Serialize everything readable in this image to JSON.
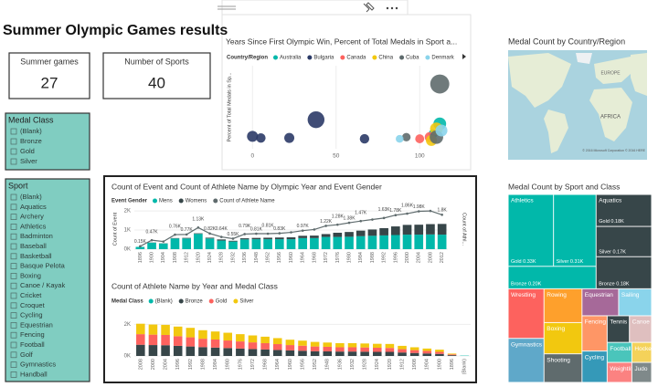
{
  "header": {
    "title": "Summer Olympic Games results"
  },
  "cards": [
    {
      "label": "Summer games",
      "value": 27
    },
    {
      "label": "Number of Sports",
      "value": 40
    }
  ],
  "slicers": [
    {
      "title": "Medal Class",
      "items": [
        "(Blank)",
        "Bronze",
        "Gold",
        "Silver"
      ]
    },
    {
      "title": "Sport",
      "items": [
        "(Blank)",
        "Aquatics",
        "Archery",
        "Athletics",
        "Badminton",
        "Baseball",
        "Basketball",
        "Basque Pelota",
        "Boxing",
        "Canoe / Kayak",
        "Cricket",
        "Croquet",
        "Cycling",
        "Equestrian",
        "Fencing",
        "Football",
        "Golf",
        "Gymnastics",
        "Handball"
      ]
    }
  ],
  "map": {
    "title": "Medal Count by Country/Region",
    "labels": [
      "EUROPE",
      "AFRICA"
    ],
    "credit": "© 2016 Microsoft Corporation © 2016 HERE"
  },
  "chart_data": [
    {
      "type": "scatter",
      "title": "Years Since First Olympic Win, Percent of Total Medals in Sport a...",
      "legend_title": "Country/Region",
      "y_label": "Percent of Total Medals in Sp...",
      "xlim": [
        -10,
        125
      ],
      "xticks": [
        0,
        50,
        100
      ],
      "ylim": [
        0,
        100
      ],
      "series": [
        {
          "name": "Australia",
          "color": "#01b8aa",
          "x": [
            112,
            108
          ],
          "values": [
            30,
            18
          ],
          "sizes": [
            40,
            20
          ]
        },
        {
          "name": "Bulgaria",
          "color": "#2b3a67",
          "x": [
            38,
            0,
            5,
            22,
            67
          ],
          "values": [
            35,
            15,
            13,
            13,
            12
          ],
          "sizes": [
            70,
            30,
            22,
            25,
            22
          ]
        },
        {
          "name": "Canada",
          "color": "#fd625e",
          "x": [
            100,
            106
          ],
          "values": [
            12,
            14
          ],
          "sizes": [
            20,
            25
          ]
        },
        {
          "name": "China",
          "color": "#f2c80f",
          "x": [
            110,
            107
          ],
          "values": [
            24,
            10
          ],
          "sizes": [
            40,
            30
          ]
        },
        {
          "name": "Cuba",
          "color": "#5f6b6d",
          "x": [
            112,
            92,
            110
          ],
          "values": [
            78,
            14,
            14
          ],
          "sizes": [
            90,
            18,
            45
          ]
        },
        {
          "name": "Denmark",
          "color": "#8ad4eb",
          "x": [
            113,
            88
          ],
          "values": [
            22,
            12
          ],
          "sizes": [
            35,
            15
          ]
        }
      ]
    },
    {
      "type": "combo",
      "title": "Count of Event and Count of Athlete Name by Olympic Year and Event Gender",
      "legend_title": "Event Gender",
      "y_label": "Count of Event",
      "y2_label": "Count of Athl...",
      "ylim": [
        0,
        2100
      ],
      "yticks": [
        {
          "value": 0,
          "label": "0K"
        },
        {
          "value": 1000,
          "label": "1K"
        },
        {
          "value": 2000,
          "label": "2K"
        }
      ],
      "categories": [
        "1896",
        "1900",
        "1904",
        "1908",
        "1912",
        "1920",
        "1924",
        "1928",
        "1932",
        "1936",
        "1948",
        "1952",
        "1956",
        "1960",
        "1964",
        "1968",
        "1972",
        "1976",
        "1980",
        "1984",
        "1988",
        "1992",
        "1996",
        "2000",
        "2004",
        "2008",
        "2012"
      ],
      "series": [
        {
          "name": "Mens",
          "color": "#01b8aa",
          "kind": "bar",
          "values": [
            120,
            340,
            300,
            560,
            560,
            800,
            560,
            450,
            400,
            510,
            520,
            520,
            520,
            520,
            580,
            580,
            640,
            640,
            650,
            680,
            700,
            720,
            740,
            760,
            760,
            770,
            760
          ]
        },
        {
          "name": "Womens",
          "color": "#374649",
          "kind": "bar",
          "values": [
            0,
            10,
            10,
            20,
            30,
            30,
            40,
            60,
            40,
            60,
            70,
            80,
            90,
            100,
            120,
            130,
            150,
            220,
            250,
            290,
            330,
            380,
            450,
            510,
            520,
            540,
            560
          ]
        },
        {
          "name": "Count of Athlete Name",
          "color": "#5f6b6d",
          "kind": "line",
          "values": [
            150,
            470,
            400,
            760,
            770,
            1130,
            820,
            640,
            550,
            790,
            810,
            810,
            830,
            880,
            970,
            1030,
            1220,
            1280,
            1380,
            1470,
            1550,
            1630,
            1780,
            1860,
            1980,
            2000,
            1800
          ],
          "value_labels": [
            "0.15K",
            "0.47K",
            null,
            "0.76K",
            "0.77K",
            "1.13K",
            "0.82K",
            "0.64K",
            "0.55K",
            "0.79K",
            "0.81K",
            "0.81K",
            "0.83K",
            null,
            "0.97K",
            null,
            "1.22K",
            "1.28K",
            "1.38K",
            "1.47K",
            null,
            "1.63K",
            "1.78K",
            "1.86K",
            "1.98K",
            null,
            "1.8K"
          ]
        }
      ]
    },
    {
      "type": "stacked_bar",
      "title": "Count of Athlete Name by Year and Medal Class",
      "legend_title": "Medal Class",
      "ylim": [
        0,
        2600
      ],
      "yticks": [
        {
          "value": 0,
          "label": "0K"
        },
        {
          "value": 2000,
          "label": "2K"
        }
      ],
      "categories": [
        "2008",
        "2000",
        "2004",
        "1996",
        "1992",
        "1988",
        "1984",
        "1980",
        "1976",
        "1972",
        "1968",
        "1964",
        "1960",
        "1956",
        "1952",
        "1948",
        "1936",
        "1932",
        "1928",
        "1924",
        "1920",
        "1912",
        "1908",
        "1904",
        "1900",
        "1896",
        "(Blank)"
      ],
      "series": [
        {
          "name": "(Blank)",
          "color": "#01b8aa",
          "values": [
            0,
            0,
            0,
            0,
            0,
            0,
            0,
            0,
            0,
            0,
            0,
            0,
            0,
            0,
            0,
            0,
            0,
            0,
            0,
            0,
            0,
            0,
            0,
            0,
            0,
            0,
            20
          ]
        },
        {
          "name": "Bronze",
          "color": "#374649",
          "values": [
            710,
            690,
            680,
            640,
            600,
            560,
            530,
            500,
            470,
            440,
            410,
            380,
            350,
            330,
            300,
            290,
            280,
            280,
            270,
            260,
            260,
            220,
            190,
            160,
            130,
            50,
            0
          ]
        },
        {
          "name": "Gold",
          "color": "#fd625e",
          "values": [
            670,
            660,
            650,
            610,
            580,
            530,
            510,
            480,
            450,
            420,
            400,
            370,
            340,
            320,
            300,
            290,
            270,
            270,
            270,
            260,
            250,
            210,
            180,
            160,
            130,
            50,
            0
          ]
        },
        {
          "name": "Silver",
          "color": "#f2c80f",
          "values": [
            660,
            640,
            640,
            610,
            600,
            540,
            510,
            490,
            460,
            440,
            410,
            380,
            340,
            320,
            290,
            270,
            260,
            260,
            250,
            250,
            250,
            210,
            180,
            150,
            140,
            50,
            0
          ]
        }
      ]
    },
    {
      "type": "treemap",
      "title": "Medal Count by Sport and Class",
      "items": [
        {
          "name": "Athletics",
          "color": "#01b8aa",
          "children": [
            {
              "name": "Gold",
              "value": 330,
              "value_label": "0.33K"
            },
            {
              "name": "Silver",
              "value": 310,
              "value_label": "0.31K"
            },
            {
              "name": "Bronze",
              "value": 200,
              "value_label": "0.20K"
            }
          ]
        },
        {
          "name": "Aquatics",
          "color": "#374649",
          "children": [
            {
              "name": "Gold",
              "value": 180,
              "value_label": "0.18K"
            },
            {
              "name": "Silver",
              "value": 170,
              "value_label": "0.17K"
            },
            {
              "name": "Bronze",
              "value": 180,
              "value_label": "0.18K"
            }
          ]
        },
        {
          "name": "Wrestling",
          "color": "#fd625e",
          "value": 180
        },
        {
          "name": "Gymnastics",
          "color": "#5fa8c9",
          "value": 160
        },
        {
          "name": "Rowing",
          "color": "#fea02c",
          "value": 130
        },
        {
          "name": "Boxing",
          "color": "#f2c80f",
          "value": 120
        },
        {
          "name": "Shooting",
          "color": "#5f6b6d",
          "value": 110
        },
        {
          "name": "Equestrian",
          "color": "#a66999",
          "value": 100
        },
        {
          "name": "Sailing",
          "color": "#8ad4eb",
          "value": 90
        },
        {
          "name": "Fencing",
          "color": "#fe9666",
          "value": 90
        },
        {
          "name": "Cycling",
          "color": "#3599b8",
          "value": 80
        },
        {
          "name": "Tennis",
          "color": "#374649",
          "value": 60
        },
        {
          "name": "Canoe / Kayak",
          "color": "#dfbfbf",
          "value": 60
        },
        {
          "name": "Football",
          "color": "#4ac5bb",
          "value": 50
        },
        {
          "name": "Weightlifting",
          "color": "#fb8281",
          "value": 50
        },
        {
          "name": "Hockey",
          "color": "#f4d25a",
          "value": 40
        },
        {
          "name": "Judo",
          "color": "#7f898a",
          "value": 40
        }
      ]
    }
  ]
}
